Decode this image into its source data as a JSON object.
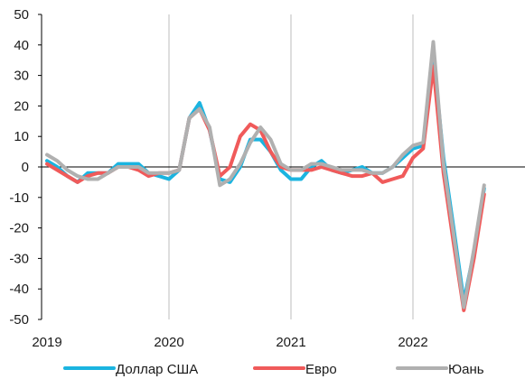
{
  "chart_data": {
    "type": "line",
    "title": "",
    "xlabel": "",
    "ylabel": "",
    "ylim": [
      -50,
      50
    ],
    "yticks": [
      -50,
      -40,
      -30,
      -20,
      -10,
      0,
      10,
      20,
      30,
      40,
      50
    ],
    "xticks": [
      "2019",
      "2020",
      "2021",
      "2022"
    ],
    "grid": {
      "vertical": true,
      "horizontal": false
    },
    "legend_position": "bottom",
    "x": [
      "2019-01",
      "2019-02",
      "2019-03",
      "2019-04",
      "2019-05",
      "2019-06",
      "2019-07",
      "2019-08",
      "2019-09",
      "2019-10",
      "2019-11",
      "2019-12",
      "2020-01",
      "2020-02",
      "2020-03",
      "2020-04",
      "2020-05",
      "2020-06",
      "2020-07",
      "2020-08",
      "2020-09",
      "2020-10",
      "2020-11",
      "2020-12",
      "2021-01",
      "2021-02",
      "2021-03",
      "2021-04",
      "2021-05",
      "2021-06",
      "2021-07",
      "2021-08",
      "2021-09",
      "2021-10",
      "2021-11",
      "2021-12",
      "2022-01",
      "2022-02",
      "2022-03",
      "2022-04",
      "2022-05",
      "2022-06",
      "2022-07",
      "2022-08"
    ],
    "series": [
      {
        "name": "Доллар США",
        "color": "#1bb4e0",
        "values": [
          2,
          0,
          -3,
          -5,
          -2,
          -2,
          -2,
          1,
          1,
          1,
          -2,
          -3,
          -4,
          -1,
          16,
          21,
          12,
          -4,
          -5,
          0,
          9,
          9,
          5,
          -1,
          -4,
          -4,
          0,
          2,
          -1,
          -2,
          -1,
          0,
          -2,
          -2,
          0,
          3,
          6,
          7,
          37,
          3,
          -20,
          -44,
          -28,
          -7
        ]
      },
      {
        "name": "Евро",
        "color": "#f05a5a",
        "values": [
          1,
          -1,
          -3,
          -5,
          -3,
          -2,
          -2,
          0,
          0,
          -1,
          -3,
          -2,
          -2,
          -1,
          16,
          19,
          12,
          -3,
          0,
          10,
          14,
          12,
          5,
          0,
          -1,
          -1,
          -1,
          0,
          -1,
          -2,
          -3,
          -3,
          -2,
          -5,
          -4,
          -3,
          3,
          6,
          33,
          -2,
          -25,
          -47,
          -30,
          -9
        ]
      },
      {
        "name": "Юань",
        "color": "#b0b0b0",
        "values": [
          4,
          2,
          -1,
          -3,
          -4,
          -4,
          -2,
          0,
          0,
          0,
          -2,
          -2,
          -2,
          -1,
          16,
          19,
          13,
          -6,
          -4,
          1,
          8,
          13,
          9,
          1,
          -1,
          -1,
          1,
          1,
          0,
          -1,
          -1,
          -1,
          -2,
          -2,
          0,
          4,
          7,
          8,
          41,
          1,
          -22,
          -46,
          -27,
          -6
        ]
      }
    ]
  }
}
